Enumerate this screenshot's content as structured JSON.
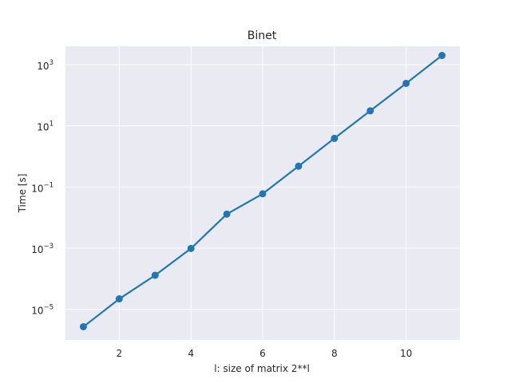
{
  "chart_data": {
    "type": "line",
    "title": "Binet",
    "xlabel": "l: size of matrix 2**l",
    "ylabel": "Time [s]",
    "x": [
      1,
      2,
      3,
      4,
      5,
      6,
      7,
      8,
      9,
      10,
      11
    ],
    "series": [
      {
        "values": [
          2.7e-06,
          2.2e-05,
          0.00013,
          0.00098,
          0.013,
          0.06,
          0.48,
          3.9,
          31,
          245,
          2000
        ]
      }
    ],
    "xlim": [
      0.5,
      11.5
    ],
    "ylim": [
      1e-06,
      4000
    ],
    "yscale": "log",
    "xticks": [
      {
        "value": 2,
        "label": "2"
      },
      {
        "value": 4,
        "label": "4"
      },
      {
        "value": 6,
        "label": "6"
      },
      {
        "value": 8,
        "label": "8"
      },
      {
        "value": 10,
        "label": "10"
      }
    ],
    "yticks": [
      {
        "value": 1e-05,
        "base": "10",
        "exp": "−5"
      },
      {
        "value": 0.001,
        "base": "10",
        "exp": "−3"
      },
      {
        "value": 0.1,
        "base": "10",
        "exp": "−1"
      },
      {
        "value": 10,
        "base": "10",
        "exp": "1"
      },
      {
        "value": 1000,
        "base": "10",
        "exp": "3"
      }
    ],
    "grid": true,
    "colors": {
      "line": "#1f77b4",
      "plot_background": "#eaeaf2",
      "grid": "#ffffff"
    }
  }
}
